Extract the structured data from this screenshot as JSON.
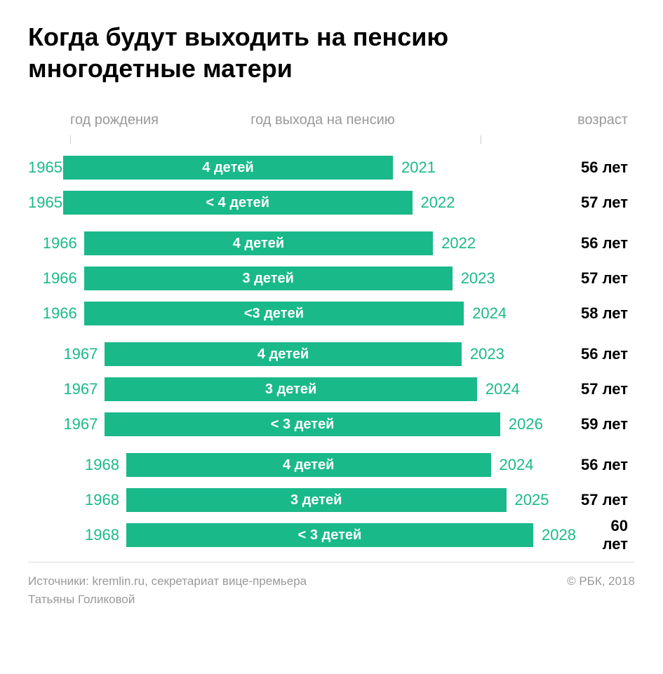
{
  "title_line1": "Когда будут выходить на пенсию",
  "title_line2": "многодетные матери",
  "headers": {
    "birth": "год рождения",
    "retire": "год выхода на пенсию",
    "age": "возраст"
  },
  "layout": {
    "accent_color": "#1ab98a",
    "bar_color": "#1ab98a",
    "text_light": "#999999",
    "birth_col_min": 50,
    "birth_col_max": 140,
    "bar_width_min": 470,
    "bar_width_max": 580,
    "tick_left": 60,
    "tick_right": 645
  },
  "groups": [
    {
      "rows": [
        {
          "birth": "1965",
          "label": "4 детей",
          "retire": "2021",
          "age": "56 лет",
          "indent": 0.0,
          "width": 0.0
        },
        {
          "birth": "1965",
          "label": "< 4 детей",
          "retire": "2022",
          "age": "57 лет",
          "indent": 0.0,
          "width": 0.25
        }
      ]
    },
    {
      "rows": [
        {
          "birth": "1966",
          "label": "4 детей",
          "retire": "2022",
          "age": "56 лет",
          "indent": 0.33,
          "width": 0.25
        },
        {
          "birth": "1966",
          "label": "3 детей",
          "retire": "2023",
          "age": "57 лет",
          "indent": 0.33,
          "width": 0.5
        },
        {
          "birth": "1966",
          "label": "<3 детей",
          "retire": "2024",
          "age": "58 лет",
          "indent": 0.33,
          "width": 0.65
        }
      ]
    },
    {
      "rows": [
        {
          "birth": "1967",
          "label": "4 детей",
          "retire": "2023",
          "age": "56 лет",
          "indent": 0.66,
          "width": 0.35
        },
        {
          "birth": "1967",
          "label": "3 детей",
          "retire": "2024",
          "age": "57 лет",
          "indent": 0.66,
          "width": 0.55
        },
        {
          "birth": "1967",
          "label": "< 3 детей",
          "retire": "2026",
          "age": "59 лет",
          "indent": 0.66,
          "width": 0.85
        }
      ]
    },
    {
      "rows": [
        {
          "birth": "1968",
          "label": "4 детей",
          "retire": "2024",
          "age": "56 лет",
          "indent": 1.0,
          "width": 0.45
        },
        {
          "birth": "1968",
          "label": "3 детей",
          "retire": "2025",
          "age": "57 лет",
          "indent": 1.0,
          "width": 0.65
        },
        {
          "birth": "1968",
          "label": "< 3 детей",
          "retire": "2028",
          "age": "60 лет",
          "indent": 1.0,
          "width": 1.0
        }
      ]
    }
  ],
  "footer": {
    "source_line1": "Источники: kremlin.ru, секретариат вице-премьера",
    "source_line2": "Татьяны Голиковой",
    "credit": "© РБК, 2018"
  }
}
